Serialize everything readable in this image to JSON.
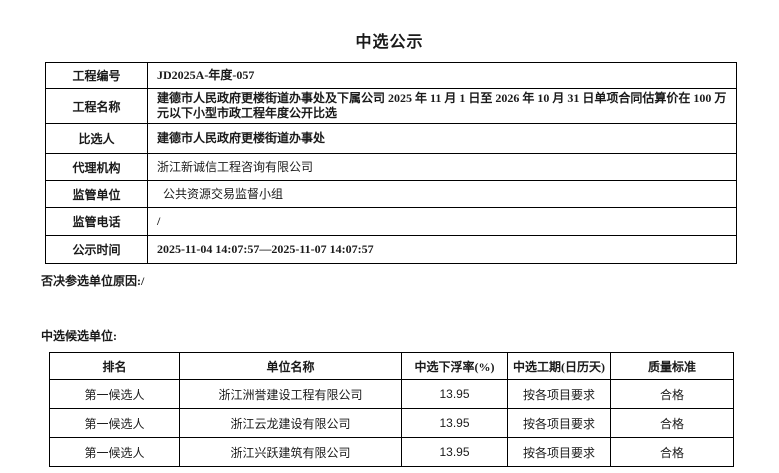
{
  "page": {
    "title": "中选公示"
  },
  "colors": {
    "text": "#1a1a1a",
    "border": "#000000",
    "background": "#ffffff"
  },
  "info_table": {
    "rows": [
      {
        "label": "工程编号",
        "value": "JD2025A-年度-057"
      },
      {
        "label": "工程名称",
        "value": "建德市人民政府更楼街道办事处及下属公司 2025 年 11 月 1 日至 2026 年 10 月 31 日单项合同估算价在 100 万元以下小型市政工程年度公开比选"
      },
      {
        "label": "比选人",
        "value": "建德市人民政府更楼街道办事处"
      },
      {
        "label": "代理机构",
        "value": "浙江新诚信工程咨询有限公司"
      },
      {
        "label": "监管单位",
        "value": "公共资源交易监督小组"
      },
      {
        "label": "监管电话",
        "value": "/"
      },
      {
        "label": "公示时间",
        "value": "2025-11-04 14:07:57—2025-11-07 14:07:57"
      }
    ]
  },
  "notes": {
    "reject_reason": "否决参选单位原因:/",
    "candidates_heading": "中选候选单位:"
  },
  "candidates_table": {
    "headers": [
      "排名",
      "单位名称",
      "中选下浮率(%)",
      "中选工期(日历天)",
      "质量标准"
    ],
    "rows": [
      {
        "rank": "第一候选人",
        "company": "浙江洲誉建设工程有限公司",
        "downrate": "13.95",
        "duration": "按各项目要求",
        "quality": "合格"
      },
      {
        "rank": "第一候选人",
        "company": "浙江云龙建设有限公司",
        "downrate": "13.95",
        "duration": "按各项目要求",
        "quality": "合格"
      },
      {
        "rank": "第一候选人",
        "company": "浙江兴跃建筑有限公司",
        "downrate": "13.95",
        "duration": "按各项目要求",
        "quality": "合格"
      }
    ]
  }
}
